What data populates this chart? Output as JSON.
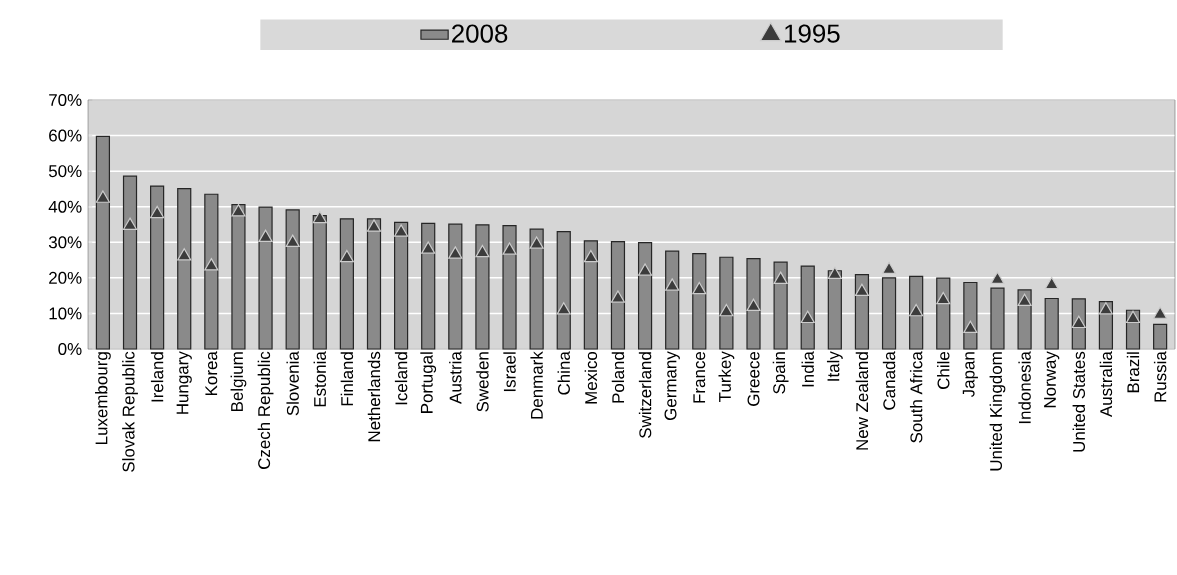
{
  "chart_data": {
    "type": "bar",
    "categories": [
      "Luxembourg",
      "Slovak Republic",
      "Ireland",
      "Hungary",
      "Korea",
      "Belgium",
      "Czech Republic",
      "Slovenia",
      "Estonia",
      "Finland",
      "Netherlands",
      "Iceland",
      "Portugal",
      "Austria",
      "Sweden",
      "Israel",
      "Denmark",
      "China",
      "Mexico",
      "Poland",
      "Switzerland",
      "Germany",
      "France",
      "Turkey",
      "Greece",
      "Spain",
      "India",
      "Italy",
      "New Zealand",
      "Canada",
      "South Africa",
      "Chile",
      "Japan",
      "United Kingdom",
      "Indonesia",
      "Norway",
      "United States",
      "Australia",
      "Brazil",
      "Russia"
    ],
    "series": [
      {
        "name": "2008",
        "type": "bar",
        "color": "#8a8a8a",
        "values": [
          59.8,
          48.6,
          45.8,
          45.1,
          43.5,
          40.6,
          39.9,
          39.1,
          37.5,
          36.6,
          36.6,
          35.6,
          35.3,
          35.1,
          34.9,
          34.7,
          33.7,
          33,
          30.4,
          30.2,
          29.9,
          27.5,
          26.8,
          25.8,
          25.4,
          24.4,
          23.3,
          22,
          20.9,
          20,
          20.4,
          19.9,
          18.7,
          17.1,
          16.6,
          14.2,
          14.1,
          13.3,
          10.9,
          6.9
        ]
      },
      {
        "name": "1995",
        "type": "scatter",
        "marker": "triangle",
        "color": "#3c3c3c",
        "values": [
          42.3,
          34.7,
          38,
          26.1,
          23.3,
          38.5,
          31.3,
          29.9,
          36.6,
          25.6,
          34.2,
          32.8,
          28,
          26.6,
          27,
          27.7,
          29.4,
          10.9,
          25.6,
          14.2,
          21.8,
          17.6,
          16.6,
          10.4,
          11.9,
          19.5,
          8.5,
          20.9,
          16.1,
          22.3,
          10.4,
          13.8,
          5.7,
          19.5,
          13.3,
          18,
          7.1,
          10.9,
          8.5,
          9.7
        ]
      }
    ],
    "ylim": [
      0,
      70
    ],
    "yticks": [
      {
        "value": 0,
        "label": "0%"
      },
      {
        "value": 10,
        "label": "10%"
      },
      {
        "value": 20,
        "label": "20%"
      },
      {
        "value": 30,
        "label": "30%"
      },
      {
        "value": 40,
        "label": "40%"
      },
      {
        "value": 50,
        "label": "50%"
      },
      {
        "value": 60,
        "label": "60%"
      },
      {
        "value": 70,
        "label": "70%"
      }
    ],
    "grid": "y",
    "legend": "top"
  }
}
